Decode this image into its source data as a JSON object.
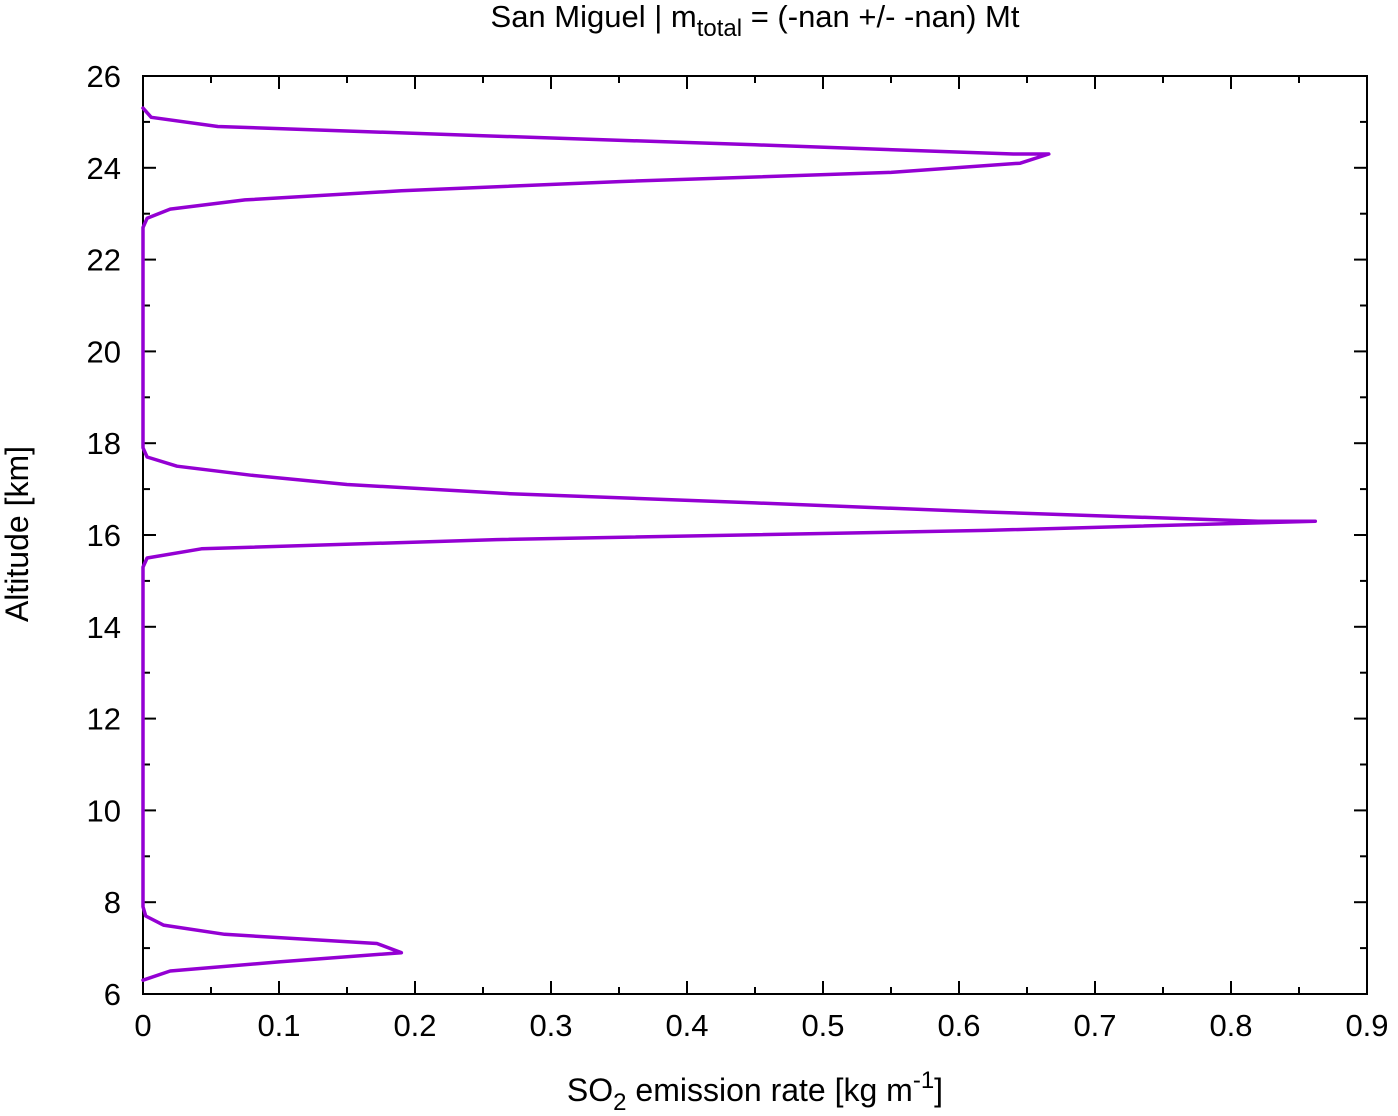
{
  "chart_data": {
    "type": "line",
    "title": {
      "prefix": "San Miguel | m",
      "subscript": "total",
      "suffix": " = (-nan +/- -nan) Mt"
    },
    "xlabel": {
      "prefix": "SO",
      "subscript": "2",
      "middle": " emission rate [kg m",
      "superscript": "-1",
      "suffix": "]"
    },
    "ylabel": "Altitude [km]",
    "xlim": [
      0,
      0.9
    ],
    "ylim": [
      6,
      26
    ],
    "x_ticks": [
      "0",
      "0.1",
      "0.2",
      "0.3",
      "0.4",
      "0.5",
      "0.6",
      "0.7",
      "0.8",
      "0.9"
    ],
    "y_ticks": [
      "6",
      "8",
      "10",
      "12",
      "14",
      "16",
      "18",
      "20",
      "22",
      "24",
      "26"
    ],
    "x_tick_values": [
      0,
      0.1,
      0.2,
      0.3,
      0.4,
      0.5,
      0.6,
      0.7,
      0.8,
      0.9
    ],
    "y_tick_values": [
      6,
      8,
      10,
      12,
      14,
      16,
      18,
      20,
      22,
      24,
      26
    ],
    "grid": false,
    "legend": "none",
    "series": [
      {
        "color": "#9400d3",
        "points": [
          [
            0.0,
            6.3
          ],
          [
            0.02,
            6.5
          ],
          [
            0.1,
            6.7
          ],
          [
            0.19,
            6.9
          ],
          [
            0.172,
            7.1
          ],
          [
            0.06,
            7.3
          ],
          [
            0.015,
            7.5
          ],
          [
            0.002,
            7.7
          ],
          [
            0.0,
            7.9
          ],
          [
            0.0,
            9.0
          ],
          [
            0.0,
            11.0
          ],
          [
            0.0,
            13.0
          ],
          [
            0.0,
            15.3
          ],
          [
            0.003,
            15.5
          ],
          [
            0.043,
            15.7
          ],
          [
            0.26,
            15.9
          ],
          [
            0.62,
            16.1
          ],
          [
            0.862,
            16.3
          ],
          [
            0.82,
            16.3
          ],
          [
            0.62,
            16.5
          ],
          [
            0.45,
            16.7
          ],
          [
            0.27,
            16.9
          ],
          [
            0.15,
            17.1
          ],
          [
            0.08,
            17.3
          ],
          [
            0.025,
            17.5
          ],
          [
            0.003,
            17.7
          ],
          [
            0.0,
            17.9
          ],
          [
            0.0,
            19.0
          ],
          [
            0.0,
            21.0
          ],
          [
            0.0,
            22.7
          ],
          [
            0.003,
            22.9
          ],
          [
            0.02,
            23.1
          ],
          [
            0.075,
            23.3
          ],
          [
            0.19,
            23.5
          ],
          [
            0.35,
            23.7
          ],
          [
            0.55,
            23.9
          ],
          [
            0.645,
            24.1
          ],
          [
            0.666,
            24.3
          ],
          [
            0.64,
            24.3
          ],
          [
            0.45,
            24.5
          ],
          [
            0.25,
            24.7
          ],
          [
            0.055,
            24.9
          ],
          [
            0.006,
            25.1
          ],
          [
            0.0,
            25.3
          ]
        ]
      }
    ]
  }
}
